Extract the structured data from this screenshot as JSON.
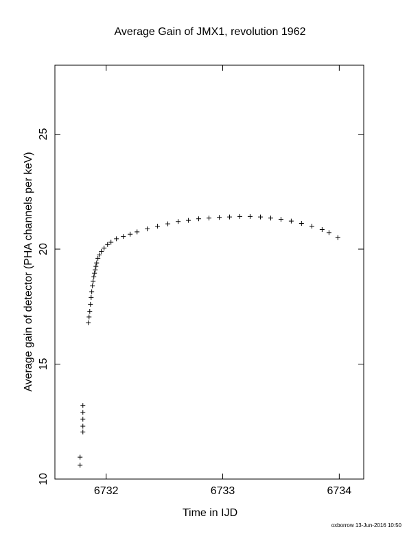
{
  "chart_data": {
    "type": "scatter",
    "title": "Average Gain of JMX1, revolution 1962",
    "x_label": "Time in IJD",
    "y_label": "Average gain of detector (PHA channels per keV)",
    "footer": "oxborrow 13-Jun-2016 10:50",
    "marker": "plus",
    "color": "#000000",
    "xlim": [
      6731.56,
      6734.21
    ],
    "xticks": [
      6732,
      6733,
      6734
    ],
    "ylim": [
      10,
      28
    ],
    "yticks": [
      10,
      15,
      20,
      25
    ],
    "series": [
      {
        "x": [
          6731.776,
          6731.776,
          6731.8,
          6731.8,
          6731.8,
          6731.8,
          6731.8,
          6731.847,
          6731.853,
          6731.859,
          6731.865,
          6731.871,
          6731.876,
          6731.882,
          6731.888,
          6731.894,
          6731.9,
          6731.906,
          6731.912,
          6731.918,
          6731.929,
          6731.941,
          6731.959,
          6731.982,
          6732.012,
          6732.041,
          6732.088,
          6732.147,
          6732.206,
          6732.265,
          6732.353,
          6732.441,
          6732.529,
          6732.618,
          6732.706,
          6732.794,
          6732.882,
          6732.971,
          6733.059,
          6733.147,
          6733.235,
          6733.324,
          6733.412,
          6733.5,
          6733.588,
          6733.676,
          6733.765,
          6733.853,
          6733.912,
          6733.988
        ],
        "values": [
          10.6,
          10.95,
          12.05,
          12.3,
          12.6,
          12.9,
          13.2,
          16.8,
          17.05,
          17.3,
          17.6,
          17.9,
          18.15,
          18.4,
          18.6,
          18.8,
          18.95,
          19.1,
          19.25,
          19.4,
          19.6,
          19.75,
          19.9,
          20.05,
          20.2,
          20.3,
          20.45,
          20.55,
          20.65,
          20.75,
          20.88,
          21.0,
          21.1,
          21.2,
          21.25,
          21.32,
          21.35,
          21.38,
          21.4,
          21.42,
          21.42,
          21.4,
          21.35,
          21.3,
          21.22,
          21.12,
          21.0,
          20.85,
          20.72,
          20.5
        ]
      }
    ]
  }
}
